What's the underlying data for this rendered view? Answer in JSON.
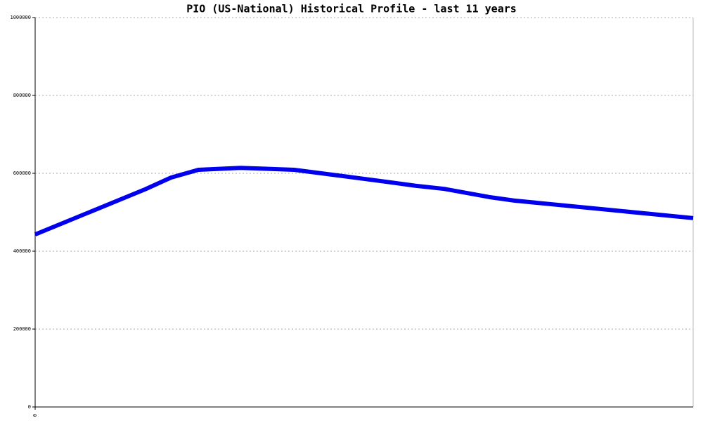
{
  "chart_data": {
    "type": "line",
    "title": "PIO (US-National) Historical Profile - last 11 years",
    "x": [
      0,
      1.84,
      2.27,
      2.73,
      3.43,
      4.33,
      5.24,
      5.88,
      6.36,
      6.84,
      7.59,
      8.01,
      11
    ],
    "series": [
      {
        "name": "PIO",
        "color": "#0000ee",
        "values": [
          443000,
          559000,
          589000,
          609000,
          614000,
          609000,
          591000,
          578000,
          568000,
          560000,
          539000,
          530000,
          485000
        ]
      }
    ],
    "xlim": [
      0,
      11
    ],
    "xticks": [
      0
    ],
    "ylim": [
      0,
      1000000
    ],
    "yticks": [
      0,
      200000,
      400000,
      600000,
      800000,
      1000000
    ],
    "grid": true
  }
}
